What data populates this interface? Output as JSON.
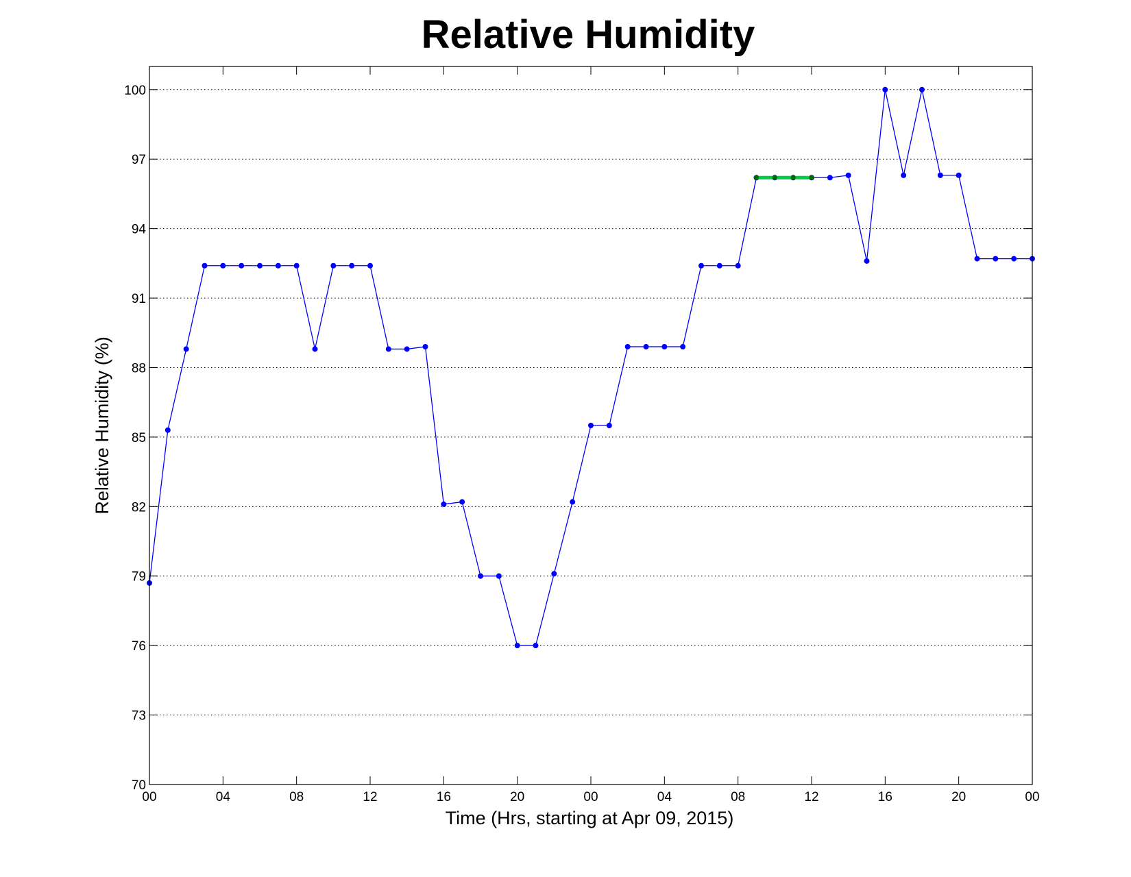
{
  "chart_data": {
    "type": "line",
    "title": "Relative Humidity",
    "xlabel": "Time (Hrs, starting at Apr 09, 2015)",
    "ylabel": "Relative Humidity (%)",
    "x_unit": "hour",
    "xlim": [
      0,
      48
    ],
    "ylim": [
      70,
      101
    ],
    "x_ticks": [
      {
        "value": 0,
        "label": "00"
      },
      {
        "value": 4,
        "label": "04"
      },
      {
        "value": 8,
        "label": "08"
      },
      {
        "value": 12,
        "label": "12"
      },
      {
        "value": 16,
        "label": "16"
      },
      {
        "value": 20,
        "label": "20"
      },
      {
        "value": 24,
        "label": "00"
      },
      {
        "value": 28,
        "label": "04"
      },
      {
        "value": 32,
        "label": "08"
      },
      {
        "value": 36,
        "label": "12"
      },
      {
        "value": 40,
        "label": "16"
      },
      {
        "value": 44,
        "label": "20"
      },
      {
        "value": 48,
        "label": "00"
      }
    ],
    "y_ticks": [
      {
        "value": 70,
        "label": "70"
      },
      {
        "value": 73,
        "label": "73"
      },
      {
        "value": 76,
        "label": "76"
      },
      {
        "value": 79,
        "label": "79"
      },
      {
        "value": 82,
        "label": "82"
      },
      {
        "value": 85,
        "label": "85"
      },
      {
        "value": 88,
        "label": "88"
      },
      {
        "value": 91,
        "label": "91"
      },
      {
        "value": 94,
        "label": "94"
      },
      {
        "value": 97,
        "label": "97"
      },
      {
        "value": 100,
        "label": "100"
      }
    ],
    "grid": "horizontal dotted",
    "series": [
      {
        "color": "#0000ff",
        "marker": "dot",
        "x": [
          0,
          1,
          2,
          3,
          4,
          5,
          6,
          7,
          8,
          9,
          10,
          11,
          12,
          13,
          14,
          15,
          16,
          17,
          18,
          19,
          20,
          21,
          22,
          23,
          24,
          25,
          26,
          27,
          28,
          29,
          30,
          31,
          32,
          33,
          34,
          35,
          36,
          37,
          38,
          39,
          40,
          41,
          42,
          43,
          44,
          45,
          46,
          47,
          48
        ],
        "values": [
          78.7,
          85.3,
          88.8,
          92.4,
          92.4,
          92.4,
          92.4,
          92.4,
          92.4,
          88.8,
          92.4,
          92.4,
          92.4,
          88.8,
          88.8,
          88.9,
          82.1,
          82.2,
          79.0,
          79.0,
          76.0,
          76.0,
          79.1,
          82.2,
          85.5,
          85.5,
          88.9,
          88.9,
          88.9,
          88.9,
          92.4,
          92.4,
          92.4,
          96.2,
          96.2,
          96.2,
          96.2,
          96.2,
          96.3,
          92.6,
          100.0,
          96.3,
          100.0,
          96.3,
          96.3,
          92.7,
          92.7,
          92.7,
          92.7
        ]
      },
      {
        "color": "#00cc44",
        "marker_color": "#006600",
        "marker": "dot",
        "x": [
          33,
          34,
          35,
          36
        ],
        "values": [
          96.2,
          96.2,
          96.2,
          96.2
        ]
      }
    ]
  }
}
